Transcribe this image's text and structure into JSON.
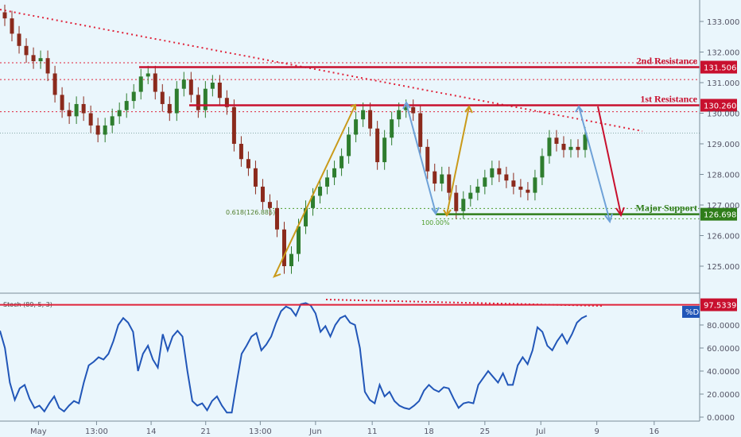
{
  "chart_data": {
    "type": "candlestick",
    "price_panel": {
      "ylim": [
        124.5,
        133.5
      ],
      "ticks": [
        125.0,
        126.0,
        127.0,
        128.0,
        129.0,
        130.0,
        131.0,
        132.0,
        133.0
      ],
      "tick_labels": [
        "125.000",
        "126.000",
        "127.000",
        "128.000",
        "129.000",
        "130.000",
        "131.000",
        "132.000",
        "133.000"
      ],
      "grid": false,
      "closes": [
        133.1,
        132.6,
        132.2,
        131.9,
        131.7,
        131.8,
        131.3,
        130.6,
        130.1,
        129.9,
        130.3,
        130.0,
        129.6,
        129.3,
        129.6,
        129.9,
        130.1,
        130.4,
        130.7,
        131.2,
        131.3,
        130.7,
        130.3,
        130.0,
        130.8,
        131.1,
        130.6,
        130.1,
        130.8,
        131.0,
        130.5,
        130.2,
        129.0,
        128.5,
        128.2,
        127.6,
        127.1,
        126.9,
        126.2,
        125.0,
        125.4,
        126.3,
        126.9,
        127.3,
        127.6,
        127.9,
        128.2,
        128.6,
        129.3,
        129.8,
        130.1,
        129.5,
        128.4,
        129.2,
        129.8,
        130.1,
        130.2,
        130.0,
        128.9,
        128.1,
        127.7,
        128.0,
        127.4,
        126.8,
        127.2,
        127.4,
        127.6,
        127.9,
        128.2,
        128.0,
        127.8,
        127.6,
        127.5,
        127.4,
        127.9,
        128.6,
        129.2,
        129.0,
        128.8,
        128.9,
        128.8,
        129.3
      ]
    },
    "stoch_panel": {
      "label": "Stoch (89, 5, 3)",
      "series_name": "%D",
      "ylim": [
        0,
        100
      ],
      "ticks": [
        0,
        20,
        40,
        60,
        80
      ],
      "tick_labels": [
        "0.0000",
        "20.0000",
        "40.0000",
        "60.0000",
        "80.0000"
      ],
      "level": 97.5339,
      "level_label": "97.5339",
      "values": [
        75,
        60,
        30,
        15,
        25,
        28,
        16,
        8,
        10,
        5,
        12,
        18,
        8,
        5,
        10,
        14,
        12,
        30,
        45,
        48,
        52,
        50,
        55,
        66,
        80,
        86,
        82,
        74,
        40,
        55,
        62,
        50,
        43,
        72,
        58,
        70,
        75,
        70,
        40,
        14,
        10,
        12,
        6,
        14,
        18,
        10,
        4,
        4,
        30,
        55,
        62,
        70,
        73,
        58,
        63,
        70,
        82,
        92,
        96,
        94,
        88,
        98,
        99,
        97,
        90,
        74,
        79,
        70,
        80,
        86,
        88,
        82,
        80,
        60,
        22,
        15,
        12,
        28,
        18,
        22,
        14,
        10,
        8,
        7,
        10,
        14,
        23,
        28,
        24,
        22,
        26,
        25,
        16,
        8,
        12,
        13,
        12,
        28,
        34,
        40,
        35,
        30,
        38,
        28,
        28,
        45,
        52,
        46,
        58,
        78,
        74,
        62,
        58,
        66,
        72,
        64,
        72,
        82,
        86,
        88
      ]
    },
    "x_axis": {
      "ticks": [
        {
          "pos": 0.055,
          "label": "May"
        },
        {
          "pos": 0.138,
          "label": "13:00"
        },
        {
          "pos": 0.216,
          "label": "14"
        },
        {
          "pos": 0.294,
          "label": "21"
        },
        {
          "pos": 0.372,
          "label": "13:00"
        },
        {
          "pos": 0.451,
          "label": "Jun"
        },
        {
          "pos": 0.532,
          "label": "11"
        },
        {
          "pos": 0.613,
          "label": "18"
        },
        {
          "pos": 0.693,
          "label": "25"
        },
        {
          "pos": 0.773,
          "label": "Jul"
        },
        {
          "pos": 0.853,
          "label": "9"
        },
        {
          "pos": 0.935,
          "label": "16"
        }
      ]
    },
    "levels": [
      {
        "name": "2nd Resistance",
        "price": 131.506,
        "label": "131.506",
        "color": "#c8102e"
      },
      {
        "name": "1st Resistance",
        "price": 130.26,
        "label": "130.260",
        "color": "#c8102e"
      },
      {
        "name": "Major Support",
        "price": 126.698,
        "label": "126.698",
        "color": "#2f7d1a"
      }
    ],
    "dotted_levels": [
      131.65,
      131.1,
      130.05
    ],
    "fib_labels": [
      "0.618(126.885)",
      "100.00%"
    ],
    "colors": {
      "background": "#eaf6fc",
      "candle_up": "#2e7d2e",
      "candle_down": "#8b2a1c",
      "stoch_line": "#2156b8",
      "resistance": "#c8102e",
      "support": "#2f7d1a",
      "projection_orange": "#c99a1a",
      "projection_blue": "#6fa2d8",
      "projection_red": "#c8102e"
    }
  }
}
